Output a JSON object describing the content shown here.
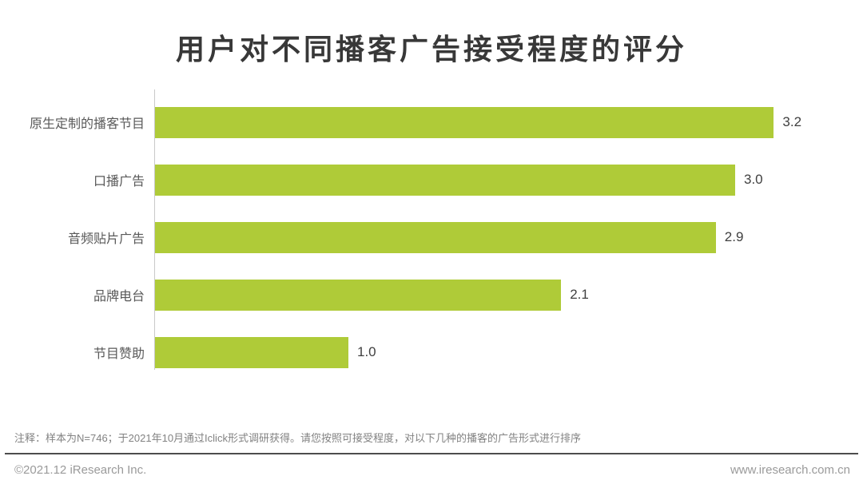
{
  "title": "用户对不同播客广告接受程度的评分",
  "chart_data": {
    "type": "bar",
    "orientation": "horizontal",
    "title": "用户对不同播客广告接受程度的评分",
    "categories": [
      "原生定制的播客节目",
      "口播广告",
      "音频贴片广告",
      "品牌电台",
      "节目赞助"
    ],
    "values": [
      3.2,
      3.0,
      2.9,
      2.1,
      1.0
    ],
    "value_labels": [
      "3.2",
      "3.0",
      "2.9",
      "2.1",
      "1.0"
    ],
    "xlim": [
      0,
      3.6
    ],
    "grid": false,
    "legend": false,
    "bar_color": "#afcb38"
  },
  "note": "注释：样本为N=746；于2021年10月通过Iclick形式调研获得。请您按照可接受程度，对以下几种的播客的广告形式进行排序",
  "footer": {
    "copyright": "©2021.12 iResearch Inc.",
    "website": "www.iresearch.com.cn"
  },
  "colors": {
    "bar": "#afcb38",
    "title_text": "#383838",
    "category_text": "#595959",
    "value_text": "#404040",
    "note_text": "#828282",
    "footer_text": "#9a9a9a",
    "axis_line": "#c9c9c9",
    "divider_line": "#4d4d4d"
  }
}
